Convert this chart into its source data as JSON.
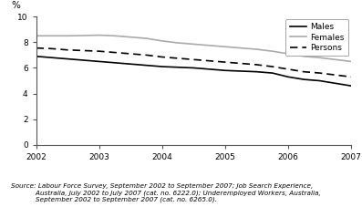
{
  "years": [
    2002,
    2002.25,
    2002.5,
    2002.75,
    2003,
    2003.25,
    2003.5,
    2003.75,
    2004,
    2004.25,
    2004.5,
    2004.75,
    2005,
    2005.25,
    2005.5,
    2005.75,
    2006,
    2006.25,
    2006.5,
    2006.75,
    2007
  ],
  "males": [
    6.9,
    6.8,
    6.7,
    6.6,
    6.5,
    6.4,
    6.3,
    6.2,
    6.1,
    6.05,
    6.0,
    5.9,
    5.8,
    5.75,
    5.7,
    5.6,
    5.3,
    5.1,
    5.0,
    4.8,
    4.6
  ],
  "females": [
    8.5,
    8.5,
    8.5,
    8.52,
    8.55,
    8.5,
    8.4,
    8.3,
    8.1,
    7.95,
    7.85,
    7.75,
    7.65,
    7.55,
    7.45,
    7.3,
    7.1,
    6.9,
    6.8,
    6.65,
    6.5
  ],
  "persons": [
    7.55,
    7.5,
    7.4,
    7.35,
    7.3,
    7.2,
    7.1,
    7.0,
    6.85,
    6.75,
    6.65,
    6.55,
    6.45,
    6.35,
    6.25,
    6.1,
    5.9,
    5.7,
    5.6,
    5.45,
    5.3
  ],
  "males_color": "#000000",
  "females_color": "#aaaaaa",
  "persons_color": "#000000",
  "ylim": [
    0,
    10
  ],
  "yticks": [
    0,
    2,
    4,
    6,
    8,
    10
  ],
  "xticks": [
    2002,
    2003,
    2004,
    2005,
    2006,
    2007
  ],
  "ylabel": "%",
  "source_line1": "Source: Labour Force Survey, September 2002 to September 2007; Job Search Experience,",
  "source_line2": "            Australia, July 2002 to July 2007 (cat. no. 6222.0); Underemployed Workers, Australia,",
  "source_line3": "            September 2002 to September 2007 (cat. no. 6265.0).",
  "legend_labels": [
    "Males",
    "Females",
    "Persons"
  ],
  "background_color": "#ffffff"
}
